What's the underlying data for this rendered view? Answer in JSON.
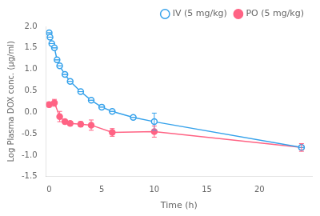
{
  "chart_data": {
    "type": "line",
    "xlabel": "Time (h)",
    "ylabel": "Log Plasma DOX conc. (µg/ml)",
    "xlim": [
      -0.3,
      25
    ],
    "xticks": [
      0,
      5,
      10,
      15,
      20
    ],
    "ylim": [
      -1.5,
      2.0
    ],
    "yticks": [
      -1.5,
      {
        "value": -1.0,
        "label": "-1.0"
      },
      -0.5,
      {
        "value": 0.0,
        "label": "0.0"
      },
      0.5,
      {
        "value": 1.0,
        "label": "1.0"
      },
      1.5,
      {
        "value": 2.0,
        "label": "2.0"
      }
    ],
    "grid": false,
    "legend": "upper right",
    "series": [
      {
        "name": "IV (5 mg/kg)",
        "marker": "open_circle",
        "x": [
          0,
          0.083,
          0.25,
          0.5,
          0.75,
          1.0,
          1.5,
          2.0,
          3.0,
          4.0,
          5.0,
          6.0,
          8.0,
          10.0,
          24.0
        ],
        "values": [
          1.85,
          1.75,
          1.6,
          1.5,
          1.22,
          1.08,
          0.88,
          0.72,
          0.48,
          0.28,
          0.12,
          0.02,
          -0.12,
          -0.22,
          -0.82
        ],
        "yerr": [
          0.0,
          0.0,
          0.0,
          0.0,
          0.0,
          0.0,
          0.0,
          0.0,
          0.0,
          0.0,
          0.0,
          0.0,
          0.0,
          0.2,
          0.0
        ]
      },
      {
        "name": "PO (5 mg/kg)",
        "marker": "circle",
        "x": [
          0,
          0.5,
          1.0,
          1.5,
          2.0,
          3.0,
          4.0,
          6.0,
          10.0,
          24.0
        ],
        "values": [
          0.18,
          0.22,
          -0.1,
          -0.22,
          -0.26,
          -0.28,
          -0.3,
          -0.47,
          -0.45,
          -0.82
        ],
        "yerr": [
          0.06,
          0.08,
          0.12,
          0.05,
          0.05,
          0.06,
          0.12,
          0.09,
          0.13,
          0.09
        ]
      }
    ]
  }
}
